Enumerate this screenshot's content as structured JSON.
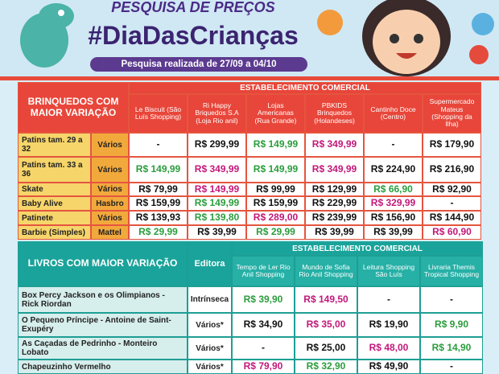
{
  "header": {
    "title": "PESQUISA DE PREÇOS",
    "hashtag": "#DiaDasCrianças",
    "subtitle": "Pesquisa realizada de 27/09 a 04/10"
  },
  "toys": {
    "heading": "BRINQUEDOS COM MAIOR VARIAÇÃO",
    "group": "ESTABELECIMENTO COMERCIAL",
    "stores": [
      "Le Biscuit (São Luís Shopping)",
      "Ri Happy Briquedos S.A (Loja Rio anil)",
      "Lojas Americanas (Rua Grande)",
      "PBKIDS Brinquedos (Holandeses)",
      "Cantinho Doce (Centro)",
      "Supermercado Mateus (Shopping da Ilha)"
    ],
    "rows": [
      {
        "item": "Patins tam. 29 a 32",
        "brand": "Vários",
        "prices": [
          "-",
          "R$ 299,99",
          "R$ 149,99",
          "R$ 349,99",
          "-",
          "R$ 179,90"
        ],
        "colors": [
          "#111",
          "#111",
          "#2a9d3c",
          "#c2187a",
          "#111",
          "#111"
        ]
      },
      {
        "item": "Patins tam. 33 a 36",
        "brand": "Vários",
        "prices": [
          "R$ 149,99",
          "R$ 349,99",
          "R$ 149,99",
          "R$ 349,99",
          "R$ 224,90",
          "R$ 216,90"
        ],
        "colors": [
          "#2a9d3c",
          "#c2187a",
          "#2a9d3c",
          "#c2187a",
          "#111",
          "#111"
        ]
      },
      {
        "item": "Skate",
        "brand": "Vários",
        "prices": [
          "R$ 79,99",
          "R$ 149,99",
          "R$ 99,99",
          "R$ 129,99",
          "R$ 66,90",
          "R$ 92,90"
        ],
        "colors": [
          "#111",
          "#c2187a",
          "#111",
          "#111",
          "#2a9d3c",
          "#111"
        ]
      },
      {
        "item": "Baby Alive",
        "brand": "Hasbro",
        "prices": [
          "R$ 159,99",
          "R$ 149,99",
          "R$ 159,99",
          "R$ 229,99",
          "R$ 329,99",
          "-"
        ],
        "colors": [
          "#111",
          "#2a9d3c",
          "#111",
          "#111",
          "#c2187a",
          "#111"
        ]
      },
      {
        "item": "Patinete",
        "brand": "Vários",
        "prices": [
          "R$ 139,93",
          "R$ 139,80",
          "R$ 289,00",
          "R$ 239,99",
          "R$ 156,90",
          "R$ 144,90"
        ],
        "colors": [
          "#111",
          "#2a9d3c",
          "#c2187a",
          "#111",
          "#111",
          "#111"
        ]
      },
      {
        "item": "Barbie (Simples)",
        "brand": "Mattel",
        "prices": [
          "R$ 29,99",
          "R$ 39,99",
          "R$ 29,99",
          "R$ 39,99",
          "R$ 39,99",
          "R$ 60,90"
        ],
        "colors": [
          "#2a9d3c",
          "#111",
          "#2a9d3c",
          "#111",
          "#111",
          "#c2187a"
        ]
      }
    ]
  },
  "books": {
    "heading": "LIVROS COM MAIOR VARIAÇÃO",
    "publisher_label": "Editora",
    "group": "ESTABELECIMENTO COMERCIAL",
    "stores": [
      "Tempo de Ler Rio Anil Shopping",
      "Mundo de Sofia Rio Anil Shopping",
      "Leitura Shopping São Luís",
      "Livraria Themis Tropical Shopping"
    ],
    "rows": [
      {
        "item": "Box Percy Jackson e os Olimpianos - Rick Riordan",
        "publisher": "Intrínseca",
        "prices": [
          "R$ 39,90",
          "R$ 149,50",
          "-",
          "-"
        ],
        "colors": [
          "#2a9d3c",
          "#c2187a",
          "#111",
          "#111"
        ]
      },
      {
        "item": "O Pequeno Príncipe - Antoine de Saint-Exupéry",
        "publisher": "Vários*",
        "prices": [
          "R$ 34,90",
          "R$ 35,00",
          "R$ 19,90",
          "R$ 9,90"
        ],
        "colors": [
          "#111",
          "#c2187a",
          "#111",
          "#2a9d3c"
        ]
      },
      {
        "item": "As Caçadas de Pedrinho - Monteiro Lobato",
        "publisher": "Vários*",
        "prices": [
          "-",
          "R$ 25,00",
          "R$ 48,00",
          "R$ 14,90"
        ],
        "colors": [
          "#111",
          "#111",
          "#c2187a",
          "#2a9d3c"
        ]
      },
      {
        "item": "Chapeuzinho Vermelho",
        "publisher": "Vários*",
        "prices": [
          "R$ 79,90",
          "R$ 32,90",
          "R$ 49,90",
          "-"
        ],
        "colors": [
          "#c2187a",
          "#2a9d3c",
          "#111",
          "#111"
        ]
      }
    ]
  }
}
